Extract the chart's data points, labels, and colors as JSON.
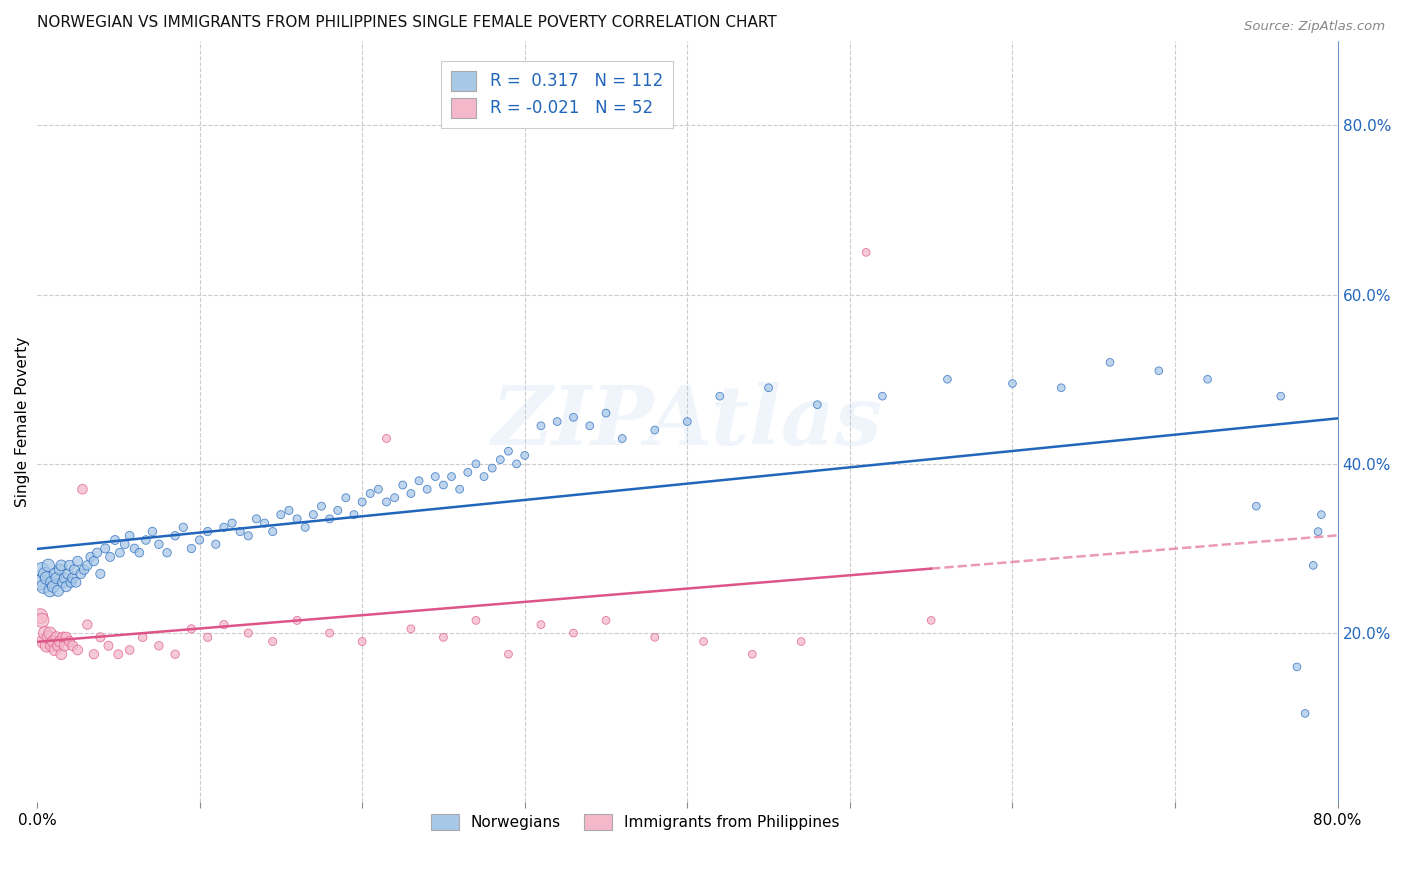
{
  "title": "NORWEGIAN VS IMMIGRANTS FROM PHILIPPINES SINGLE FEMALE POVERTY CORRELATION CHART",
  "source": "Source: ZipAtlas.com",
  "ylabel": "Single Female Poverty",
  "xlim": [
    0.0,
    0.8
  ],
  "ylim": [
    0.0,
    0.9
  ],
  "norwegians_color": "#a8c8e8",
  "immigrants_color": "#f4b8ca",
  "trendline_norwegian_color": "#2266bb",
  "trendline_immigrant_color": "#dd5588",
  "background_color": "#ffffff",
  "grid_color": "#cccccc",
  "r_norwegian": 0.317,
  "n_norwegian": 112,
  "r_immigrant": -0.021,
  "n_immigrant": 52,
  "legend_label_norwegian": "Norwegians",
  "legend_label_immigrant": "Immigrants from Philippines",
  "watermark": "ZIPAtlas",
  "norwegians_x": [
    0.002,
    0.003,
    0.004,
    0.005,
    0.006,
    0.007,
    0.008,
    0.009,
    0.01,
    0.011,
    0.012,
    0.013,
    0.014,
    0.015,
    0.016,
    0.017,
    0.018,
    0.019,
    0.02,
    0.021,
    0.022,
    0.023,
    0.024,
    0.025,
    0.027,
    0.029,
    0.031,
    0.033,
    0.035,
    0.037,
    0.039,
    0.042,
    0.045,
    0.048,
    0.051,
    0.054,
    0.057,
    0.06,
    0.063,
    0.067,
    0.071,
    0.075,
    0.08,
    0.085,
    0.09,
    0.095,
    0.1,
    0.105,
    0.11,
    0.115,
    0.12,
    0.125,
    0.13,
    0.135,
    0.14,
    0.145,
    0.15,
    0.155,
    0.16,
    0.165,
    0.17,
    0.175,
    0.18,
    0.185,
    0.19,
    0.195,
    0.2,
    0.205,
    0.21,
    0.215,
    0.22,
    0.225,
    0.23,
    0.235,
    0.24,
    0.245,
    0.25,
    0.255,
    0.26,
    0.265,
    0.27,
    0.275,
    0.28,
    0.285,
    0.29,
    0.295,
    0.3,
    0.31,
    0.32,
    0.33,
    0.34,
    0.35,
    0.36,
    0.38,
    0.4,
    0.42,
    0.45,
    0.48,
    0.52,
    0.56,
    0.6,
    0.63,
    0.66,
    0.69,
    0.72,
    0.75,
    0.765,
    0.775,
    0.78,
    0.785,
    0.788,
    0.79
  ],
  "norwegians_y": [
    0.26,
    0.275,
    0.255,
    0.27,
    0.265,
    0.28,
    0.25,
    0.26,
    0.255,
    0.27,
    0.265,
    0.25,
    0.275,
    0.28,
    0.26,
    0.265,
    0.255,
    0.27,
    0.28,
    0.26,
    0.265,
    0.275,
    0.26,
    0.285,
    0.27,
    0.275,
    0.28,
    0.29,
    0.285,
    0.295,
    0.27,
    0.3,
    0.29,
    0.31,
    0.295,
    0.305,
    0.315,
    0.3,
    0.295,
    0.31,
    0.32,
    0.305,
    0.295,
    0.315,
    0.325,
    0.3,
    0.31,
    0.32,
    0.305,
    0.325,
    0.33,
    0.32,
    0.315,
    0.335,
    0.33,
    0.32,
    0.34,
    0.345,
    0.335,
    0.325,
    0.34,
    0.35,
    0.335,
    0.345,
    0.36,
    0.34,
    0.355,
    0.365,
    0.37,
    0.355,
    0.36,
    0.375,
    0.365,
    0.38,
    0.37,
    0.385,
    0.375,
    0.385,
    0.37,
    0.39,
    0.4,
    0.385,
    0.395,
    0.405,
    0.415,
    0.4,
    0.41,
    0.445,
    0.45,
    0.455,
    0.445,
    0.46,
    0.43,
    0.44,
    0.45,
    0.48,
    0.49,
    0.47,
    0.48,
    0.5,
    0.495,
    0.49,
    0.52,
    0.51,
    0.5,
    0.35,
    0.48,
    0.16,
    0.105,
    0.28,
    0.32,
    0.34
  ],
  "immigrants_x": [
    0.002,
    0.003,
    0.004,
    0.005,
    0.006,
    0.007,
    0.008,
    0.009,
    0.01,
    0.011,
    0.012,
    0.013,
    0.014,
    0.015,
    0.016,
    0.017,
    0.018,
    0.02,
    0.022,
    0.025,
    0.028,
    0.031,
    0.035,
    0.039,
    0.044,
    0.05,
    0.057,
    0.065,
    0.075,
    0.085,
    0.095,
    0.105,
    0.115,
    0.13,
    0.145,
    0.16,
    0.18,
    0.2,
    0.215,
    0.23,
    0.25,
    0.27,
    0.29,
    0.31,
    0.33,
    0.35,
    0.38,
    0.41,
    0.44,
    0.47,
    0.51,
    0.55
  ],
  "immigrants_y": [
    0.22,
    0.215,
    0.19,
    0.2,
    0.185,
    0.195,
    0.2,
    0.185,
    0.19,
    0.18,
    0.195,
    0.185,
    0.19,
    0.175,
    0.195,
    0.185,
    0.195,
    0.19,
    0.185,
    0.18,
    0.37,
    0.21,
    0.175,
    0.195,
    0.185,
    0.175,
    0.18,
    0.195,
    0.185,
    0.175,
    0.205,
    0.195,
    0.21,
    0.2,
    0.19,
    0.215,
    0.2,
    0.19,
    0.43,
    0.205,
    0.195,
    0.215,
    0.175,
    0.21,
    0.2,
    0.215,
    0.195,
    0.19,
    0.175,
    0.19,
    0.65,
    0.215
  ]
}
